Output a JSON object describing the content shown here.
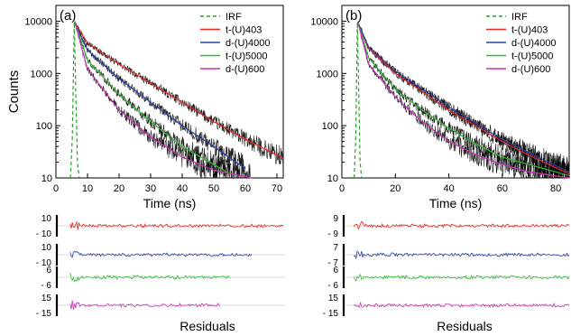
{
  "chart_data": [
    {
      "panel_label": "(a)",
      "type": "line",
      "title": "",
      "xlabel": "Time (ns)",
      "ylabel": "Counts",
      "xlim": [
        0,
        72
      ],
      "ylim": [
        10,
        20000
      ],
      "yscale": "log",
      "xticks": [
        0,
        10,
        20,
        30,
        40,
        50,
        60,
        70
      ],
      "yticks": [
        10,
        100,
        1000,
        10000
      ],
      "legend_position": "top-right",
      "series": [
        {
          "name": "IRF",
          "style": "dashed",
          "color": "#2ca02c",
          "t": [
            4.6,
            5.2,
            5.8,
            6.2,
            6.8,
            7.4
          ],
          "counts": [
            10,
            60,
            9500,
            800,
            20,
            10
          ]
        },
        {
          "name": "t-(U)403",
          "color": "#e8251f",
          "t": [
            6,
            10,
            20,
            30,
            40,
            50,
            60,
            72
          ],
          "counts": [
            9500,
            3800,
            1500,
            650,
            280,
            120,
            55,
            24
          ]
        },
        {
          "name": "d-(U)4000",
          "color": "#2b3fa8",
          "t": [
            6,
            10,
            20,
            30,
            40,
            50,
            60
          ],
          "counts": [
            9500,
            2800,
            800,
            280,
            100,
            40,
            15
          ]
        },
        {
          "name": "t-(U)5000",
          "color": "#2fb82f",
          "t": [
            6,
            10,
            20,
            30,
            40,
            50,
            55
          ],
          "counts": [
            9500,
            1800,
            400,
            120,
            40,
            18,
            12
          ]
        },
        {
          "name": "d-(U)600",
          "color": "#c834b4",
          "t": [
            6,
            10,
            20,
            30,
            40,
            50,
            62
          ],
          "counts": [
            9500,
            1200,
            200,
            60,
            25,
            14,
            10
          ]
        }
      ],
      "residuals_label": "Residuals",
      "residual_strips": [
        {
          "series": "t-(U)403",
          "ticks": [
            "10",
            "- 10"
          ],
          "t_end": 72
        },
        {
          "series": "d-(U)4000",
          "ticks": [
            "10",
            "- 10"
          ],
          "t_end": 62
        },
        {
          "series": "t-(U)5000",
          "ticks": [
            "6",
            "- 6"
          ],
          "t_end": 55
        },
        {
          "series": "d-(U)600",
          "ticks": [
            "15",
            "- 15"
          ],
          "t_end": 52
        }
      ]
    },
    {
      "panel_label": "(b)",
      "type": "line",
      "title": "",
      "xlabel": "Time (ns)",
      "ylabel": "",
      "xlim": [
        0,
        85
      ],
      "ylim": [
        10,
        20000
      ],
      "yscale": "log",
      "xticks": [
        0,
        20,
        40,
        60,
        80
      ],
      "yticks": [
        10,
        100,
        1000,
        10000
      ],
      "legend_position": "top-right",
      "series": [
        {
          "name": "IRF",
          "style": "dashed",
          "color": "#2ca02c",
          "t": [
            4.6,
            5.2,
            5.8,
            6.2,
            6.8,
            7.4
          ],
          "counts": [
            10,
            60,
            9500,
            800,
            20,
            10
          ]
        },
        {
          "name": "t-(U)403",
          "color": "#e8251f",
          "t": [
            6,
            10,
            20,
            30,
            40,
            50,
            60,
            70,
            85
          ],
          "counts": [
            9500,
            3000,
            1000,
            450,
            200,
            100,
            50,
            27,
            12
          ]
        },
        {
          "name": "d-(U)4000",
          "color": "#2b3fa8",
          "t": [
            6,
            10,
            20,
            30,
            40,
            50,
            60,
            70,
            85
          ],
          "counts": [
            9500,
            3200,
            1100,
            500,
            230,
            110,
            55,
            30,
            13
          ]
        },
        {
          "name": "t-(U)5000",
          "color": "#2fb82f",
          "t": [
            6,
            10,
            20,
            30,
            40,
            50,
            60,
            70,
            85
          ],
          "counts": [
            9500,
            2000,
            500,
            200,
            90,
            45,
            25,
            18,
            11
          ]
        },
        {
          "name": "d-(U)600",
          "color": "#c834b4",
          "t": [
            6,
            10,
            20,
            30,
            40,
            50,
            60,
            70,
            85
          ],
          "counts": [
            9500,
            1500,
            350,
            120,
            50,
            28,
            18,
            13,
            10
          ]
        }
      ],
      "residuals_label": "Residuals",
      "residual_strips": [
        {
          "series": "t-(U)403",
          "ticks": [
            "9",
            "- 9"
          ],
          "t_end": 85
        },
        {
          "series": "d-(U)4000",
          "ticks": [
            "7",
            "- 7"
          ],
          "t_end": 85
        },
        {
          "series": "t-(U)5000",
          "ticks": [
            "6",
            "- 6"
          ],
          "t_end": 85
        },
        {
          "series": "d-(U)600",
          "ticks": [
            "15",
            "- 15"
          ],
          "t_end": 85
        }
      ]
    }
  ]
}
